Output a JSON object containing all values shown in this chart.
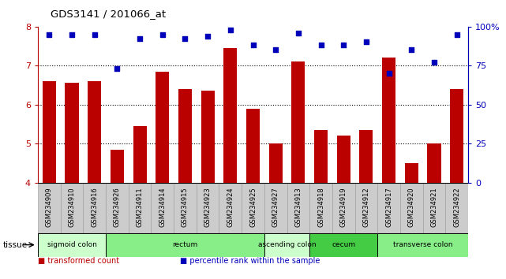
{
  "title": "GDS3141 / 201066_at",
  "samples": [
    "GSM234909",
    "GSM234910",
    "GSM234916",
    "GSM234926",
    "GSM234911",
    "GSM234914",
    "GSM234915",
    "GSM234923",
    "GSM234924",
    "GSM234925",
    "GSM234927",
    "GSM234913",
    "GSM234918",
    "GSM234919",
    "GSM234912",
    "GSM234917",
    "GSM234920",
    "GSM234921",
    "GSM234922"
  ],
  "bar_values": [
    6.6,
    6.55,
    6.6,
    4.85,
    5.45,
    6.85,
    6.4,
    6.35,
    7.45,
    5.9,
    5.0,
    7.1,
    5.35,
    5.2,
    5.35,
    7.2,
    4.5,
    5.0,
    6.4
  ],
  "percentile_values": [
    95,
    95,
    95,
    73,
    92,
    95,
    92,
    94,
    98,
    88,
    85,
    96,
    88,
    88,
    90,
    70,
    85,
    77,
    95
  ],
  "ylim_left": [
    4,
    8
  ],
  "ylim_right": [
    0,
    100
  ],
  "yticks_left": [
    4,
    5,
    6,
    7,
    8
  ],
  "yticks_right": [
    0,
    25,
    50,
    75,
    100
  ],
  "bar_color": "#bb0000",
  "dot_color": "#0000bb",
  "tissue_groups": [
    {
      "label": "sigmoid colon",
      "start": 0,
      "end": 3,
      "color": "#ccffcc"
    },
    {
      "label": "rectum",
      "start": 3,
      "end": 10,
      "color": "#88ee88"
    },
    {
      "label": "ascending colon",
      "start": 10,
      "end": 12,
      "color": "#ccffcc"
    },
    {
      "label": "cecum",
      "start": 12,
      "end": 15,
      "color": "#44cc44"
    },
    {
      "label": "transverse colon",
      "start": 15,
      "end": 19,
      "color": "#88ee88"
    }
  ],
  "legend_items": [
    {
      "color": "#bb0000",
      "label": "transformed count"
    },
    {
      "color": "#0000bb",
      "label": "percentile rank within the sample"
    }
  ],
  "xlabel_tissue": "tissue",
  "xtick_bg": "#cccccc",
  "right_axis_color": "#0000bb",
  "left_axis_color": "#bb0000"
}
